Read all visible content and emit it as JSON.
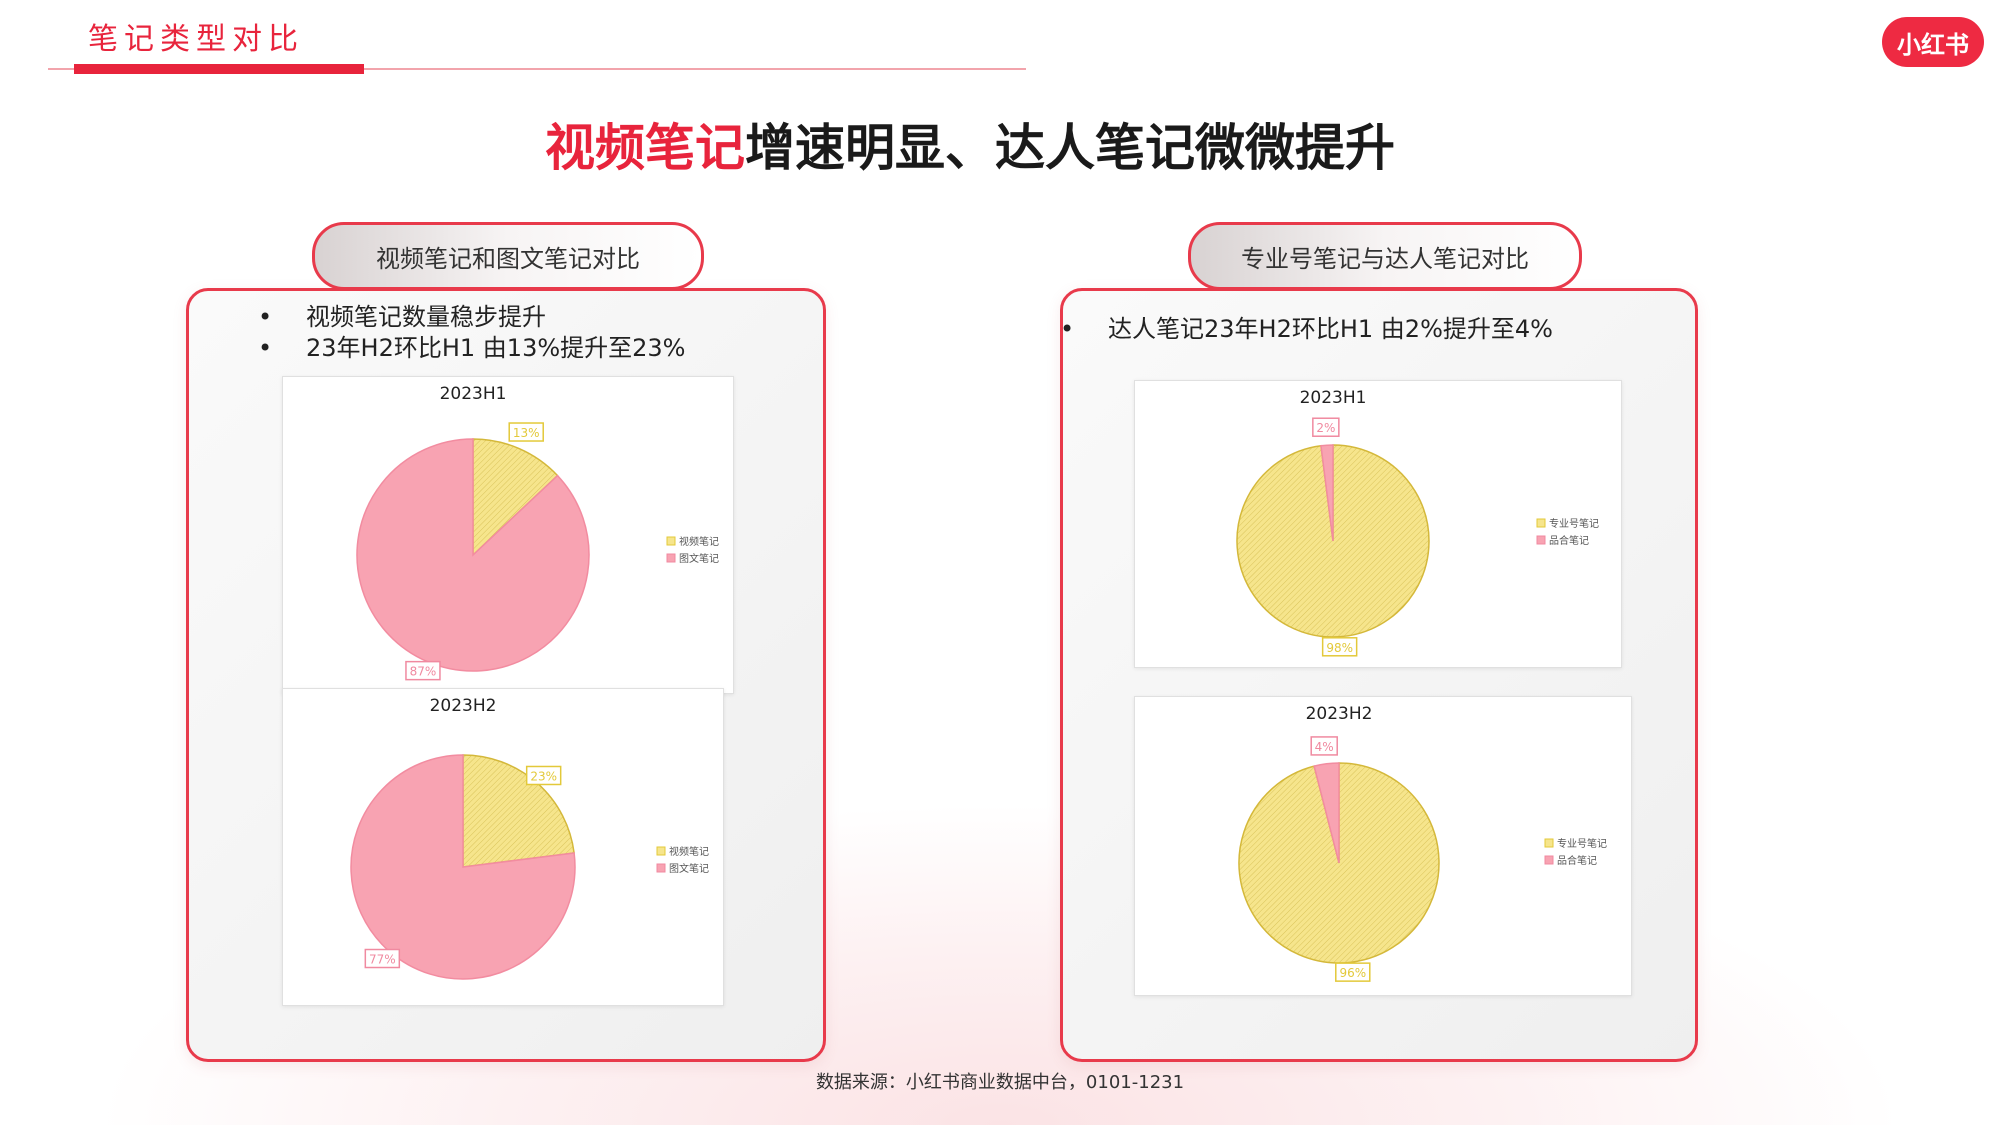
{
  "header": {
    "section_label": "笔记类型对比",
    "logo_text": "小红书",
    "headline_highlight": "视频笔记",
    "headline_rest": "增速明显、达人笔记微微提升"
  },
  "left_panel": {
    "pill_title": "视频笔记和图文笔记对比",
    "bullets": [
      "视频笔记数量稳步提升",
      "23年H2环比H1 由13%提升至23%"
    ]
  },
  "right_panel": {
    "pill_title": "专业号笔记与达人笔记对比",
    "bullets": [
      "达人笔记23年H2环比H1 由2%提升至4%"
    ]
  },
  "colors": {
    "accent_red": "#e8243c",
    "pink_slice": "#f8a3b2",
    "pink_label": "#f08aa0",
    "yellow_slice": "#f6e58c",
    "yellow_label": "#e3c93a"
  },
  "chart_data": [
    {
      "type": "pie",
      "title": "2023H1",
      "slices": [
        {
          "name": "视频笔记",
          "value": 13,
          "label": "13%",
          "color": "#f6e58c"
        },
        {
          "name": "图文笔记",
          "value": 87,
          "label": "87%",
          "color": "#f8a3b2"
        }
      ],
      "legend": "right"
    },
    {
      "type": "pie",
      "title": "2023H2",
      "slices": [
        {
          "name": "视频笔记",
          "value": 23,
          "label": "23%",
          "color": "#f6e58c"
        },
        {
          "name": "图文笔记",
          "value": 77,
          "label": "77%",
          "color": "#f8a3b2"
        }
      ],
      "legend": "right"
    },
    {
      "type": "pie",
      "title": "2023H1",
      "slices": [
        {
          "name": "专业号笔记",
          "value": 98,
          "label": "98%",
          "color": "#f6e58c"
        },
        {
          "name": "品合笔记",
          "value": 2,
          "label": "2%",
          "color": "#f8a3b2"
        }
      ],
      "legend": "right"
    },
    {
      "type": "pie",
      "title": "2023H2",
      "slices": [
        {
          "name": "专业号笔记",
          "value": 96,
          "label": "96%",
          "color": "#f6e58c"
        },
        {
          "name": "品合笔记",
          "value": 4,
          "label": "4%",
          "color": "#f8a3b2"
        }
      ],
      "legend": "right"
    }
  ],
  "footer": {
    "source": "数据来源：小红书商业数据中台，0101-1231"
  }
}
